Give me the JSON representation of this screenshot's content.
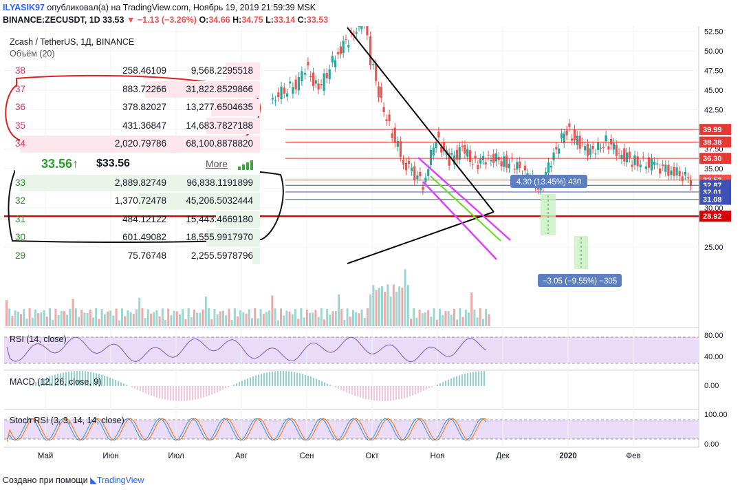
{
  "header": {
    "user": "ILYASIK97",
    "published": "опубликовал(а) на TradingView.com, Ноябрь 19, 2019 21:59:39 MSK",
    "symbol": "BINANCE:ZECUSDT, 1D",
    "last": "33.53",
    "change": "−1.13 (−3.26%)",
    "o_label": "O:",
    "o": "34.66",
    "h_label": "H:",
    "h": "34.75",
    "l_label": "L:",
    "l": "33.14",
    "c_label": "C:",
    "c": "33.53"
  },
  "legend": {
    "instrument": "Zcash / TetherUS, 1Д, BINANCE",
    "volume": "Объём (20)",
    "rsi": "RSI (14, close)",
    "macd": "MACD (12, 26, close, 9)",
    "stoch": "Stoch RSI (3, 3, 14, 14, close)"
  },
  "orderbook": {
    "asks": [
      {
        "price": "38",
        "qty": "258.46109",
        "total": "9,568.2295518",
        "depth": 0.14
      },
      {
        "price": "37",
        "qty": "883.72266",
        "total": "31,822.8529866",
        "depth": 0.47
      },
      {
        "price": "36",
        "qty": "378.82027",
        "total": "13,277.6504635",
        "depth": 0.2
      },
      {
        "price": "35",
        "qty": "431.36847",
        "total": "14,683.7827188",
        "depth": 0.22
      },
      {
        "price": "34",
        "qty": "2,020.79786",
        "total": "68,100.8878820",
        "depth": 0.98
      }
    ],
    "last_price": "33.56",
    "arrow": "↑",
    "last_usd": "$33.56",
    "more": "More",
    "bids": [
      {
        "price": "33",
        "qty": "2,889.82749",
        "total": "96,838.1191899",
        "depth": 0.98
      },
      {
        "price": "32",
        "qty": "1,370.72478",
        "total": "45,206.5032444",
        "depth": 0.5
      },
      {
        "price": "31",
        "qty": "484.12122",
        "total": "15,443.4669180",
        "depth": 0.18
      },
      {
        "price": "30",
        "qty": "601.49082",
        "total": "18,555.9917970",
        "depth": 0.22
      },
      {
        "price": "29",
        "qty": "75.76748",
        "total": "2,255.5978796",
        "depth": 0.03
      }
    ]
  },
  "footer": {
    "made_with": "Создано при помощи",
    "brand": "TradingView"
  },
  "colors": {
    "up": "#26a69a",
    "down": "#ef5350",
    "accent": "#2962ff",
    "resistance": "#e53935",
    "support": "#3f51b5",
    "channel": "#e040fb",
    "trend": "#000000",
    "indicator_fill": "#e8d5f7"
  },
  "chart_data": {
    "type": "line",
    "title": "Zcash / TetherUS, 1Д, BINANCE",
    "x_ticks": [
      "Май",
      "Июн",
      "Июл",
      "Авг",
      "Сен",
      "Окт",
      "Ноя",
      "Дек",
      "2020",
      "Фев"
    ],
    "y_ticks": [
      "52.50",
      "50.00",
      "47.50",
      "45.00",
      "42.50",
      "40.00",
      "37.50",
      "35.00",
      "32.50",
      "30.00",
      "25.00"
    ],
    "ylim": [
      22,
      53
    ],
    "series": [
      {
        "x": [
          0.0,
          0.5,
          1.0,
          1.5,
          2.0,
          2.5,
          3.0,
          3.5,
          3.9,
          4.0,
          4.2,
          4.5,
          4.7,
          4.9,
          5.0,
          5.2,
          5.5,
          5.8,
          6.0,
          6.2,
          6.4,
          6.6,
          6.8,
          7.0,
          7.2,
          7.4,
          7.6,
          7.8,
          8.0,
          8.2,
          8.4,
          8.6,
          8.8,
          9.0,
          9.3,
          9.6,
          9.9
        ],
        "values": [
          52,
          53,
          51,
          49,
          50,
          47,
          46,
          44,
          46,
          48,
          45,
          50,
          52,
          54,
          49,
          42,
          36,
          33,
          39,
          36,
          37.5,
          35.5,
          36.5,
          36,
          35.5,
          34,
          32.5,
          37,
          40,
          38,
          37,
          38.5,
          37,
          36,
          35.5,
          34.7,
          33.53
        ]
      }
    ],
    "horizontal_levels": [
      {
        "value": "39.99",
        "color": "#e53935"
      },
      {
        "value": "38.38",
        "color": "#e53935"
      },
      {
        "value": "36.30",
        "color": "#e53935"
      },
      {
        "value": "33.53",
        "color": "#ef5350"
      },
      {
        "value": "32.87",
        "color": "#3f51b5"
      },
      {
        "value": "32.01",
        "color": "#3f51b5"
      },
      {
        "value": "31.08",
        "color": "#3f51b5"
      },
      {
        "value": "28.92",
        "color": "#d50000"
      }
    ],
    "annotations": [
      {
        "text": "4.30 (13.45%) 430"
      },
      {
        "text": "−3.05 (−9.55%) −305"
      }
    ],
    "volume_legend": "Объём (20)",
    "rsi": {
      "label": "RSI (14, close)",
      "ticks": [
        "80.00",
        "40.00"
      ]
    },
    "macd": {
      "label": "MACD (12, 26, close, 9)",
      "ticks": [
        "0.00"
      ]
    },
    "stoch_rsi": {
      "label": "Stoch RSI (3, 3, 14, 14, close)",
      "ticks": [
        "100.00",
        "0.00"
      ]
    }
  }
}
